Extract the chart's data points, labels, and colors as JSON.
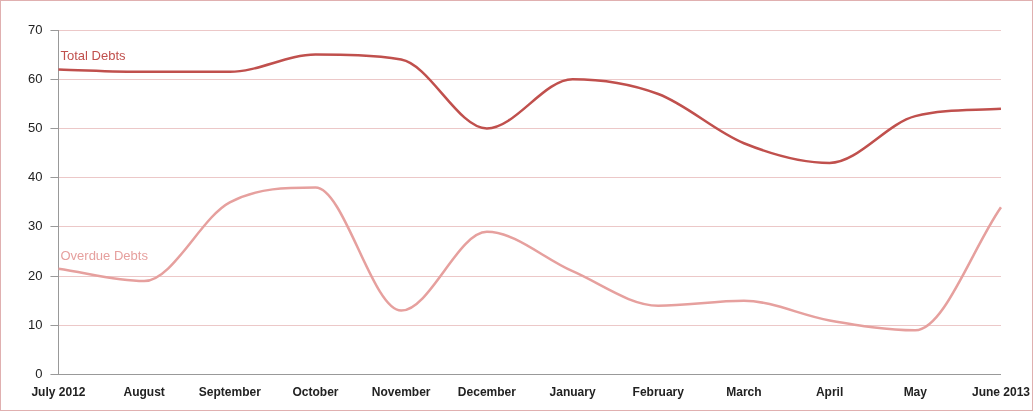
{
  "chart_data": {
    "type": "line",
    "categories": [
      "July 2012",
      "August",
      "September",
      "October",
      "November",
      "December",
      "January",
      "February",
      "March",
      "April",
      "May",
      "June 2013"
    ],
    "series": [
      {
        "name": "Total Debts",
        "color": "#c0504d",
        "values": [
          62,
          61.5,
          61.5,
          65,
          64,
          50,
          60,
          57,
          47,
          43,
          52.5,
          54
        ]
      },
      {
        "name": "Overdue Debts",
        "color": "#e6a09e",
        "values": [
          21.5,
          19,
          35,
          38,
          13,
          29,
          21,
          14,
          15,
          11,
          9,
          34
        ]
      }
    ],
    "ylim": [
      0,
      70
    ],
    "yticks": [
      0,
      10,
      20,
      30,
      40,
      50,
      60,
      70
    ],
    "grid": "y",
    "legend": false,
    "marker": "none",
    "line_style": "solid"
  }
}
